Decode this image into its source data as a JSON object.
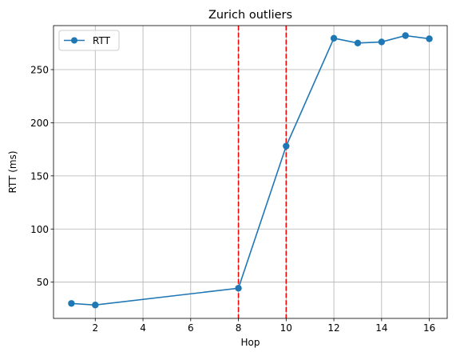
{
  "chart_data": {
    "type": "line",
    "title": "Zurich outliers",
    "xlabel": "Hop",
    "ylabel": "RTT (ms)",
    "xlim": [
      0.25,
      16.75
    ],
    "ylim": [
      15.9,
      291.4
    ],
    "xticks": [
      2,
      4,
      6,
      8,
      10,
      12,
      14,
      16
    ],
    "yticks": [
      50,
      100,
      150,
      200,
      250
    ],
    "grid": true,
    "legend": {
      "position": "top-left"
    },
    "series": [
      {
        "name": "RTT",
        "color": "#1f77b4",
        "marker": "circle",
        "x": [
          1,
          2,
          8,
          10,
          12,
          13,
          14,
          15,
          16
        ],
        "y": [
          30,
          28.5,
          44.3,
          178,
          279.5,
          275,
          276,
          282,
          279
        ]
      }
    ],
    "vlines": [
      {
        "x": 8,
        "color": "#ff0000",
        "style": "dashed"
      },
      {
        "x": 10,
        "color": "#ff0000",
        "style": "dashed"
      }
    ]
  }
}
